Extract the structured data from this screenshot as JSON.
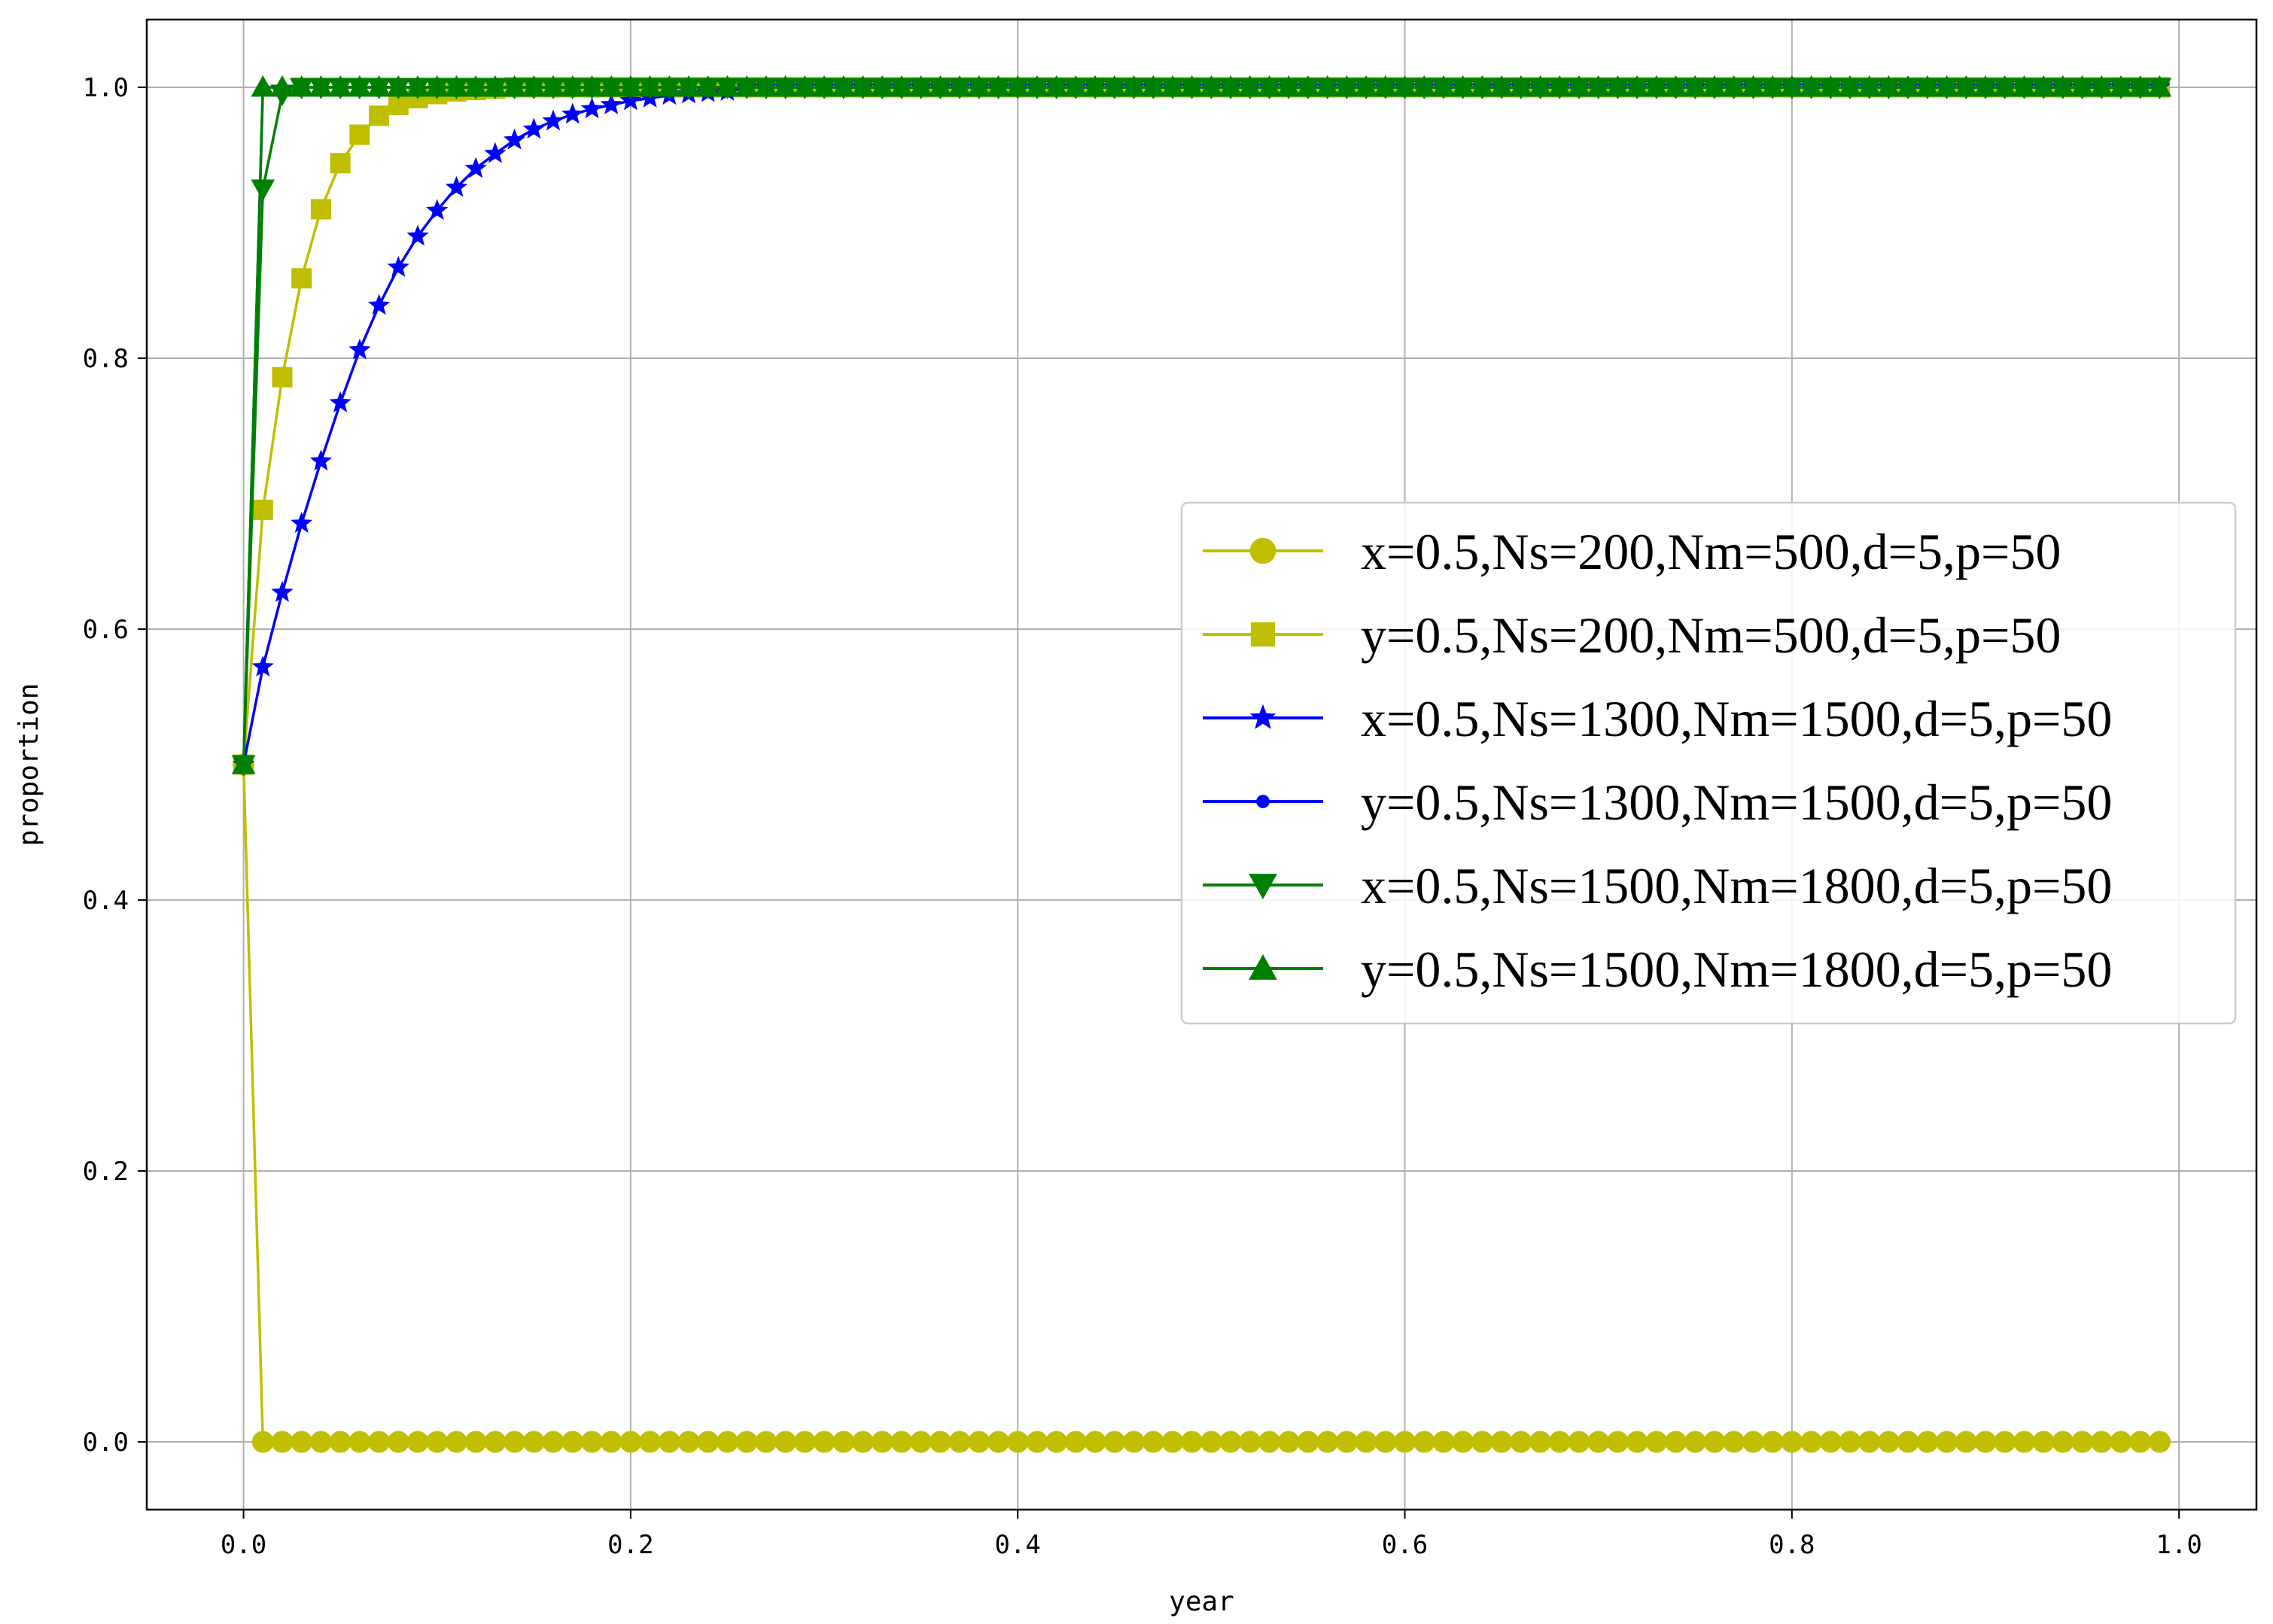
{
  "chart_data": {
    "type": "line",
    "xlabel": "year",
    "ylabel": "proportion",
    "xlim": [
      -0.05,
      1.04
    ],
    "ylim": [
      -0.05,
      1.05
    ],
    "xticks": [
      "0.0",
      "0.2",
      "0.4",
      "0.6",
      "0.8",
      "1.0"
    ],
    "yticks": [
      "0.0",
      "0.2",
      "0.4",
      "0.6",
      "0.8",
      "1.0"
    ],
    "grid": true,
    "legend_position": "center-right",
    "x_step": 0.01,
    "x_end": 0.99,
    "series": [
      {
        "name": "x=0.5,Ns=200,Nm=500,d=5,p=50",
        "color": "#bfbf00",
        "marker": "circle",
        "values": [
          0.5,
          0.0
        ],
        "steady_value": 0.0
      },
      {
        "name": "y=0.5,Ns=200,Nm=500,d=5,p=50",
        "color": "#bfbf00",
        "marker": "square",
        "values": [
          0.5,
          0.688,
          0.786,
          0.859,
          0.91,
          0.944,
          0.965,
          0.979,
          0.987,
          0.992,
          0.995,
          0.997,
          0.998,
          0.999
        ],
        "steady_value": 1.0
      },
      {
        "name": "x=0.5,Ns=1300,Nm=1500,d=5,p=50",
        "color": "#0000ff",
        "marker": "star",
        "values": [
          0.5,
          0.572,
          0.627,
          0.678,
          0.724,
          0.767,
          0.806,
          0.839,
          0.867,
          0.89,
          0.909,
          0.926,
          0.94,
          0.951,
          0.961,
          0.969,
          0.975,
          0.98,
          0.984,
          0.987,
          0.99,
          0.992,
          0.994,
          0.995,
          0.996,
          0.997
        ],
        "steady_value": 1.0
      },
      {
        "name": "y=0.5,Ns=1300,Nm=1500,d=5,p=50",
        "color": "#0000ff",
        "marker": "dot",
        "values": [
          0.5,
          1.0
        ],
        "steady_value": 1.0
      },
      {
        "name": "x=0.5,Ns=1500,Nm=1800,d=5,p=50",
        "color": "#008000",
        "marker": "triangle-down",
        "values": [
          0.5,
          0.925,
          0.995
        ],
        "steady_value": 1.0
      },
      {
        "name": "y=0.5,Ns=1500,Nm=1800,d=5,p=50",
        "color": "#008000",
        "marker": "triangle-up",
        "values": [
          0.5,
          1.0
        ],
        "steady_value": 1.0
      }
    ]
  }
}
